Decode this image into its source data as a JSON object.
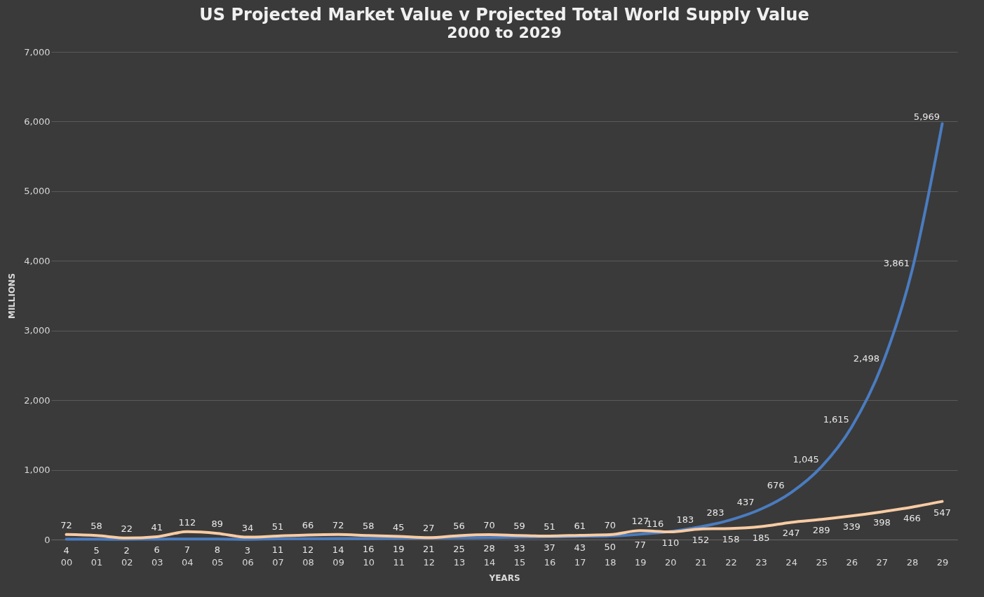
{
  "chart_data": {
    "type": "line",
    "title": "US Projected Market Value v Projected Total World Supply Value",
    "subtitle": "2000 to 2029",
    "xlabel": "YEARS",
    "ylabel": "MILLIONS",
    "categories": [
      "00",
      "01",
      "02",
      "03",
      "04",
      "05",
      "06",
      "07",
      "08",
      "09",
      "10",
      "11",
      "12",
      "13",
      "14",
      "15",
      "16",
      "17",
      "18",
      "19",
      "20",
      "21",
      "22",
      "23",
      "24",
      "25",
      "26",
      "27",
      "28",
      "29"
    ],
    "series": [
      {
        "color": "#4a7cc0",
        "values": [
          4,
          5,
          2,
          6,
          7,
          8,
          3,
          11,
          12,
          14,
          16,
          19,
          21,
          25,
          28,
          33,
          37,
          43,
          50,
          77,
          116,
          183,
          283,
          437,
          676,
          1045,
          1615,
          2498,
          3861,
          5969
        ],
        "value_labels": [
          "4",
          "5",
          "2",
          "6",
          "7",
          "8",
          "3",
          "11",
          "12",
          "14",
          "16",
          "19",
          "21",
          "25",
          "28",
          "33",
          "37",
          "43",
          "50",
          "77",
          "116",
          "183",
          "283",
          "437",
          "676",
          "1,045",
          "1,615",
          "2,498",
          "3,861",
          "5,969"
        ]
      },
      {
        "color": "#f8cba3",
        "values": [
          72,
          58,
          22,
          41,
          112,
          89,
          34,
          51,
          66,
          72,
          58,
          45,
          27,
          56,
          70,
          59,
          51,
          61,
          70,
          127,
          110,
          152,
          158,
          185,
          247,
          289,
          339,
          398,
          466,
          547
        ],
        "value_labels": [
          "72",
          "58",
          "22",
          "41",
          "112",
          "89",
          "34",
          "51",
          "66",
          "72",
          "58",
          "45",
          "27",
          "56",
          "70",
          "59",
          "51",
          "61",
          "70",
          "127",
          "110",
          "152",
          "158",
          "185",
          "247",
          "289",
          "339",
          "398",
          "466",
          "547"
        ]
      }
    ],
    "ylim": [
      0,
      7000
    ],
    "yticks": [
      0,
      {
        "value": 1000,
        "label": "1,000"
      },
      {
        "value": 2000,
        "label": "2,000"
      },
      {
        "value": 3000,
        "label": "3,000"
      },
      {
        "value": 4000,
        "label": "4,000"
      },
      {
        "value": 5000,
        "label": "5,000"
      },
      {
        "value": 6000,
        "label": "6,000"
      },
      {
        "value": 7000,
        "label": "7,000"
      }
    ],
    "grid": "y",
    "data_labels": true,
    "legend": false,
    "marker": "none",
    "line_style": "solid"
  }
}
